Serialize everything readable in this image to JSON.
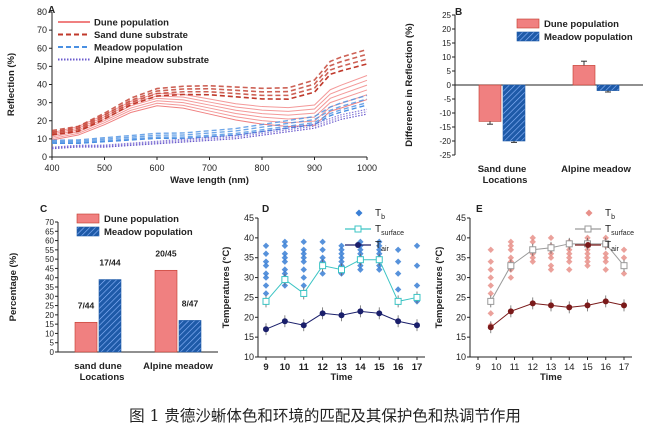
{
  "caption": "图 1 贵德沙蜥体色和环境的匹配及其保护色和热调节作用",
  "colors": {
    "dune": "#f08080",
    "dune_dark": "#c0392b",
    "meadow": "#1e5aa8",
    "meadow_light": "#4a90e2",
    "alpine_sub": "#6a5acd",
    "tb_blue": "#3a7fd5",
    "tsurf_teal": "#3cc4c4",
    "tair_navy": "#1a1f6b",
    "e_tb": "#e8908a",
    "e_tsurf": "#9a9a9a",
    "e_tair": "#7a1a1a"
  },
  "chart_data": [
    {
      "panel": "A",
      "type": "line",
      "xlabel": "Wave length (nm)",
      "ylabel": "Reflection (%)",
      "xlim": [
        400,
        1000
      ],
      "ylim": [
        0,
        80
      ],
      "xticks": [
        400,
        500,
        600,
        700,
        800,
        900,
        1000
      ],
      "yticks": [
        0,
        10,
        20,
        30,
        40,
        50,
        60,
        70,
        80
      ],
      "legend": [
        "Dune population",
        "Sand dune substrate",
        "Meadow population",
        "Alpine meadow substrate"
      ],
      "series": [
        {
          "name": "Dune population",
          "x": [
            400,
            450,
            500,
            550,
            600,
            650,
            700,
            750,
            800,
            850,
            900,
            930,
            950,
            1000
          ],
          "y": [
            11,
            14,
            20,
            27,
            31,
            30,
            27,
            24,
            22,
            21,
            22,
            30,
            32,
            37
          ]
        },
        {
          "name": "Sand dune substrate",
          "x": [
            400,
            450,
            500,
            550,
            600,
            650,
            700,
            750,
            800,
            850,
            900,
            930,
            950,
            1000
          ],
          "y": [
            13,
            15,
            22,
            30,
            35,
            36,
            36,
            35,
            34,
            34,
            38,
            48,
            50,
            54
          ]
        },
        {
          "name": "Meadow population",
          "x": [
            400,
            450,
            500,
            550,
            600,
            650,
            700,
            750,
            800,
            850,
            900,
            930,
            950,
            1000
          ],
          "y": [
            8,
            8,
            9,
            10,
            11,
            11,
            12,
            13,
            15,
            17,
            19,
            24,
            26,
            30
          ]
        },
        {
          "name": "Alpine meadow substrate",
          "x": [
            400,
            450,
            500,
            550,
            600,
            650,
            700,
            750,
            800,
            850,
            900,
            930,
            950,
            1000
          ],
          "y": [
            5,
            6,
            6,
            7,
            8,
            9,
            10,
            11,
            13,
            15,
            17,
            20,
            22,
            25
          ]
        }
      ]
    },
    {
      "panel": "B",
      "type": "bar",
      "ylabel": "Difference in Reflection (%)",
      "xlabel": "Locations",
      "categories": [
        "Sand dune",
        "Alpine meadow"
      ],
      "ylim": [
        -25,
        25
      ],
      "yticks": [
        25,
        20,
        15,
        10,
        5,
        0,
        -5,
        -10,
        -15,
        -20,
        -25
      ],
      "series": [
        {
          "name": "Dune population",
          "values": [
            -13,
            7
          ],
          "errors": [
            1,
            1.5
          ]
        },
        {
          "name": "Meadow population",
          "values": [
            -20,
            -2
          ],
          "errors": [
            0.5,
            0.5
          ]
        }
      ]
    },
    {
      "panel": "C",
      "type": "bar",
      "ylabel": "Percentage (%)",
      "xlabel": "Locations",
      "categories": [
        "sand dune",
        "Alpine meadow"
      ],
      "ylim": [
        0,
        70
      ],
      "yticks": [
        0,
        5,
        10,
        15,
        20,
        25,
        30,
        35,
        40,
        45,
        50,
        55,
        60,
        65,
        70
      ],
      "series": [
        {
          "name": "Dune population",
          "values": [
            16,
            44
          ],
          "labels": [
            "7/44",
            "20/45"
          ]
        },
        {
          "name": "Meadow population",
          "values": [
            39,
            17
          ],
          "labels": [
            "17/44",
            "8/47"
          ]
        }
      ]
    },
    {
      "panel": "D",
      "type": "scatter",
      "xlabel": "Time",
      "ylabel": "Temperatures (°C)",
      "xlim": [
        9,
        17
      ],
      "ylim": [
        10,
        45
      ],
      "xticks": [
        9,
        10,
        11,
        12,
        13,
        14,
        15,
        16,
        17
      ],
      "yticks": [
        10,
        15,
        20,
        25,
        30,
        35,
        40,
        45
      ],
      "legend": [
        "Tb",
        "Tsurface",
        "Tair"
      ],
      "series": [
        {
          "name": "Tb",
          "x": [
            9,
            9,
            9,
            9,
            9,
            9,
            9,
            9,
            10,
            10,
            10,
            10,
            10,
            10,
            10,
            10,
            10,
            11,
            11,
            11,
            11,
            11,
            11,
            11,
            11,
            12,
            12,
            12,
            12,
            12,
            12,
            13,
            13,
            13,
            13,
            13,
            13,
            13,
            13,
            14,
            14,
            14,
            14,
            14,
            14,
            14,
            14,
            15,
            15,
            15,
            15,
            15,
            15,
            15,
            16,
            16,
            16,
            16,
            17,
            17,
            17,
            17
          ],
          "y": [
            38,
            36,
            34,
            33,
            31,
            30,
            28,
            26,
            39,
            38,
            36,
            35,
            34,
            32,
            31,
            30,
            28,
            39,
            37,
            36,
            35,
            34,
            32,
            30,
            28,
            39,
            37,
            35,
            34,
            33,
            31,
            38,
            37,
            36,
            35,
            34,
            33,
            32,
            31,
            39,
            38,
            37,
            36,
            35,
            34,
            33,
            32,
            39,
            38,
            37,
            36,
            35,
            33,
            32,
            37,
            34,
            31,
            27,
            38,
            33,
            28,
            24
          ]
        },
        {
          "name": "Tsurface",
          "x": [
            9,
            10,
            11,
            12,
            13,
            14,
            15,
            16,
            17
          ],
          "y": [
            24,
            29.5,
            26,
            33,
            32,
            34.5,
            34.5,
            24,
            25
          ]
        },
        {
          "name": "Tair",
          "x": [
            9,
            10,
            11,
            12,
            13,
            14,
            15,
            16,
            17
          ],
          "y": [
            17,
            19,
            18,
            21,
            20.5,
            21.5,
            21,
            19,
            18
          ]
        }
      ]
    },
    {
      "panel": "E",
      "type": "scatter",
      "xlabel": "Time",
      "ylabel": "Temperatures (°C)",
      "xlim": [
        9,
        17
      ],
      "ylim": [
        10,
        45
      ],
      "xticks": [
        9,
        10,
        11,
        12,
        13,
        14,
        15,
        16,
        17
      ],
      "yticks": [
        10,
        15,
        20,
        25,
        30,
        35,
        40,
        45
      ],
      "legend": [
        "Tb",
        "Tsurface",
        "Tair"
      ],
      "series": [
        {
          "name": "Tb",
          "x": [
            9.7,
            9.7,
            9.7,
            9.7,
            9.7,
            9.7,
            9.7,
            9.7,
            9.7,
            10.8,
            10.8,
            10.8,
            10.8,
            10.8,
            10.8,
            10.8,
            12,
            12,
            12,
            12,
            12,
            12,
            13,
            13,
            13,
            13,
            13,
            13,
            13,
            14,
            14,
            14,
            14,
            14,
            14,
            14,
            15,
            15,
            15,
            15,
            15,
            15,
            15,
            16,
            16,
            16,
            16,
            16,
            16,
            17,
            17,
            17,
            17
          ],
          "y": [
            37,
            34,
            32,
            30,
            28,
            26,
            24,
            21,
            18,
            39,
            38,
            37,
            35,
            34,
            32,
            30,
            40,
            39,
            37,
            36,
            35,
            34,
            40,
            38,
            37,
            36,
            35,
            33,
            32,
            39,
            38,
            37,
            36,
            35,
            34,
            32,
            40,
            39,
            37,
            36,
            35,
            34,
            33,
            40,
            38,
            36,
            35,
            34,
            32,
            37,
            35,
            33,
            31
          ]
        },
        {
          "name": "Tsurface",
          "x": [
            9.7,
            10.8,
            12,
            13,
            14,
            15,
            16,
            17
          ],
          "y": [
            24,
            33,
            37,
            37.5,
            38.5,
            38.5,
            38.5,
            33
          ]
        },
        {
          "name": "Tair",
          "x": [
            9.7,
            10.8,
            12,
            13,
            14,
            15,
            16,
            17
          ],
          "y": [
            17.5,
            21.5,
            23.5,
            23,
            22.5,
            23,
            24,
            23
          ]
        }
      ]
    }
  ]
}
